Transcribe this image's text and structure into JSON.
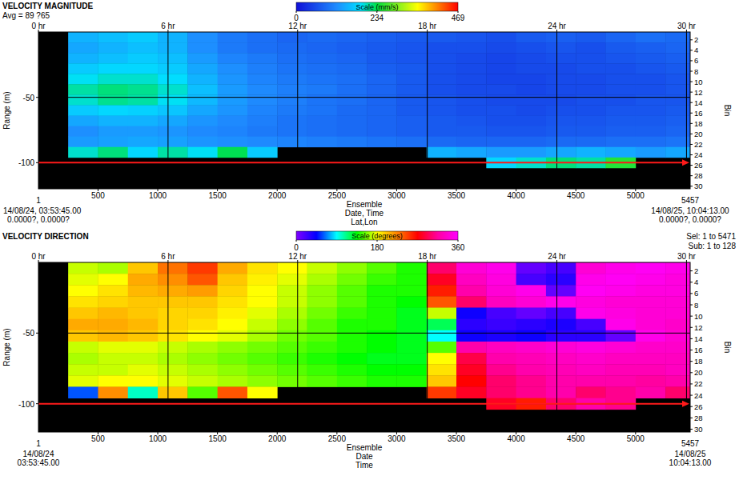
{
  "chart_data": [
    {
      "type": "heatmap",
      "title": "VELOCITY MAGNITUDE",
      "subtitle": "Avg = 89 ?65",
      "x_label": "Ensemble",
      "x_sublabels": [
        "Date, Time",
        "Lat,Lon"
      ],
      "start_labels": [
        "1",
        "14/08/24, 03:53:45.00",
        "0.0000?, 0.0000?"
      ],
      "end_labels": [
        "5457",
        "14/08/25, 10:04:13.00",
        "0.0000?, 0.0000?"
      ],
      "y_label": "Range (m)",
      "y2_label": "Bin",
      "xlim": [
        1,
        5457
      ],
      "xticks": [
        500,
        1000,
        1500,
        2000,
        2500,
        3000,
        3500,
        4000,
        4500,
        5000
      ],
      "x2lim": [
        0,
        30.17
      ],
      "x2ticks": [
        {
          "value": 0,
          "label": "0 hr"
        },
        {
          "value": 6,
          "label": "6 hr"
        },
        {
          "value": 12,
          "label": "12 hr"
        },
        {
          "value": 18,
          "label": "18 hr"
        },
        {
          "value": 24,
          "label": "24 hr"
        },
        {
          "value": 30,
          "label": "30 hr"
        }
      ],
      "ylim": [
        -120,
        0
      ],
      "yticks": [
        -50,
        -100
      ],
      "y2lim": [
        30.5,
        0.5
      ],
      "y2ticks": [
        2,
        4,
        6,
        8,
        10,
        12,
        14,
        16,
        18,
        20,
        22,
        24,
        26,
        28,
        30
      ],
      "grid": true,
      "x_edges": [
        1,
        250,
        500,
        750,
        1000,
        1250,
        1500,
        1750,
        2000,
        2250,
        2500,
        2750,
        3000,
        3250,
        3500,
        3750,
        4000,
        4250,
        4500,
        4750,
        5000,
        5250,
        5457
      ],
      "y_edges": [
        0,
        -8,
        -16,
        -24,
        -32,
        -40,
        -48,
        -56,
        -64,
        -72,
        -80,
        -88,
        -96,
        -104,
        -112,
        -120
      ],
      "values": [
        [
          null,
          150,
          160,
          170,
          150,
          120,
          100,
          90,
          80,
          85,
          80,
          75,
          70,
          70,
          65,
          60,
          70,
          75,
          70,
          80,
          90,
          85
        ],
        [
          null,
          140,
          150,
          160,
          150,
          120,
          100,
          90,
          85,
          80,
          75,
          70,
          65,
          60,
          60,
          55,
          60,
          65,
          60,
          70,
          75,
          80
        ],
        [
          null,
          150,
          160,
          170,
          160,
          130,
          110,
          100,
          90,
          85,
          80,
          70,
          65,
          60,
          55,
          50,
          55,
          60,
          60,
          65,
          70,
          75
        ],
        [
          null,
          170,
          180,
          180,
          170,
          140,
          120,
          105,
          95,
          90,
          85,
          75,
          70,
          60,
          55,
          50,
          55,
          55,
          60,
          60,
          65,
          70
        ],
        [
          null,
          190,
          200,
          200,
          185,
          150,
          125,
          110,
          100,
          95,
          90,
          80,
          70,
          60,
          55,
          50,
          50,
          55,
          55,
          60,
          60,
          65
        ],
        [
          null,
          210,
          220,
          215,
          200,
          160,
          130,
          115,
          105,
          100,
          90,
          80,
          70,
          60,
          55,
          55,
          50,
          55,
          55,
          60,
          60,
          65
        ],
        [
          null,
          200,
          215,
          210,
          190,
          155,
          130,
          115,
          105,
          95,
          90,
          80,
          70,
          65,
          60,
          55,
          55,
          55,
          60,
          60,
          65,
          65
        ],
        [
          null,
          170,
          180,
          175,
          165,
          140,
          125,
          110,
          100,
          95,
          85,
          80,
          70,
          65,
          60,
          60,
          55,
          60,
          60,
          65,
          65,
          70
        ],
        [
          null,
          140,
          150,
          150,
          140,
          125,
          115,
          105,
          95,
          90,
          85,
          80,
          75,
          70,
          65,
          60,
          60,
          65,
          65,
          70,
          70,
          75
        ],
        [
          null,
          120,
          130,
          130,
          125,
          115,
          110,
          100,
          95,
          90,
          85,
          80,
          75,
          70,
          70,
          65,
          65,
          70,
          70,
          75,
          75,
          80
        ],
        [
          null,
          130,
          135,
          140,
          135,
          125,
          120,
          115,
          110,
          105,
          100,
          95,
          90,
          85,
          80,
          80,
          80,
          85,
          85,
          90,
          90,
          95
        ],
        [
          null,
          200,
          220,
          180,
          210,
          190,
          230,
          170,
          null,
          null,
          null,
          null,
          null,
          150,
          140,
          130,
          130,
          140,
          150,
          140,
          130,
          140
        ],
        [
          null,
          null,
          null,
          null,
          null,
          null,
          null,
          null,
          null,
          null,
          null,
          null,
          null,
          null,
          null,
          180,
          200,
          220,
          210,
          250,
          null,
          null
        ],
        [
          null,
          null,
          null,
          null,
          null,
          null,
          null,
          null,
          null,
          null,
          null,
          null,
          null,
          null,
          null,
          null,
          null,
          null,
          null,
          null,
          null,
          null
        ],
        [
          null,
          null,
          null,
          null,
          null,
          null,
          null,
          null,
          null,
          null,
          null,
          null,
          null,
          null,
          null,
          null,
          null,
          null,
          null,
          null,
          null,
          null
        ]
      ],
      "colorbar": {
        "title": "Scale (mm/s)",
        "range": [
          0,
          469
        ],
        "ticks": [
          0,
          234,
          469
        ]
      },
      "reference_line": {
        "value": -100,
        "color": "#ff1a1a"
      }
    },
    {
      "type": "heatmap",
      "title": "VELOCITY DIRECTION",
      "selection_labels": [
        "Sel: 1 to 5471",
        "Sub: 1 to 128"
      ],
      "x_label": "Ensemble",
      "x_sublabels": [
        "Date",
        "Time"
      ],
      "start_labels": [
        "1",
        "14/08/24",
        "03:53:45.00"
      ],
      "end_labels": [
        "5457",
        "14/08/25",
        "10:04:13.00"
      ],
      "y_label": "Range (m)",
      "y2_label": "Bin",
      "xlim": [
        1,
        5457
      ],
      "xticks": [
        500,
        1000,
        1500,
        2000,
        2500,
        3000,
        3500,
        4000,
        4500,
        5000
      ],
      "x2lim": [
        0,
        30.17
      ],
      "x2ticks": [
        {
          "value": 0,
          "label": "0 hr"
        },
        {
          "value": 6,
          "label": "6 hr"
        },
        {
          "value": 12,
          "label": "12 hr"
        },
        {
          "value": 18,
          "label": "18 hr"
        },
        {
          "value": 24,
          "label": "24 hr"
        },
        {
          "value": 30,
          "label": "30 hr"
        }
      ],
      "ylim": [
        -120,
        0
      ],
      "yticks": [
        -50,
        -100
      ],
      "y2lim": [
        30.5,
        0.5
      ],
      "y2ticks": [
        2,
        4,
        6,
        8,
        10,
        12,
        14,
        16,
        18,
        20,
        22,
        24,
        26,
        28,
        30
      ],
      "grid": true,
      "x_edges": [
        1,
        250,
        500,
        750,
        1000,
        1250,
        1500,
        1750,
        2000,
        2250,
        2500,
        2750,
        3000,
        3250,
        3500,
        3750,
        4000,
        4250,
        4500,
        4750,
        5000,
        5250,
        5457
      ],
      "y_edges": [
        0,
        -8,
        -16,
        -24,
        -32,
        -40,
        -48,
        -56,
        -64,
        -72,
        -80,
        -88,
        -96,
        -104,
        -112,
        -120
      ],
      "values": [
        [
          null,
          170,
          165,
          200,
          230,
          250,
          210,
          190,
          180,
          170,
          160,
          150,
          140,
          300,
          340,
          350,
          10,
          20,
          340,
          350,
          355,
          350
        ],
        [
          null,
          175,
          180,
          210,
          220,
          240,
          200,
          185,
          175,
          165,
          155,
          145,
          140,
          280,
          330,
          345,
          20,
          30,
          350,
          355,
          350,
          345
        ],
        [
          null,
          180,
          190,
          205,
          210,
          215,
          195,
          180,
          170,
          160,
          150,
          140,
          140,
          260,
          320,
          340,
          350,
          10,
          355,
          350,
          345,
          345
        ],
        [
          null,
          190,
          195,
          200,
          200,
          200,
          190,
          180,
          170,
          160,
          150,
          140,
          135,
          240,
          300,
          330,
          340,
          350,
          345,
          340,
          340,
          340
        ],
        [
          null,
          200,
          205,
          200,
          195,
          195,
          185,
          175,
          165,
          155,
          145,
          140,
          130,
          170,
          40,
          20,
          10,
          20,
          350,
          345,
          340,
          340
        ],
        [
          null,
          210,
          210,
          205,
          195,
          190,
          180,
          170,
          160,
          150,
          140,
          140,
          130,
          120,
          30,
          25,
          30,
          35,
          20,
          350,
          340,
          335
        ],
        [
          null,
          200,
          205,
          200,
          190,
          180,
          175,
          165,
          155,
          150,
          140,
          135,
          130,
          90,
          40,
          35,
          40,
          30,
          30,
          10,
          350,
          340
        ],
        [
          null,
          170,
          175,
          175,
          170,
          165,
          160,
          155,
          150,
          145,
          140,
          135,
          130,
          150,
          320,
          330,
          335,
          340,
          345,
          340,
          335,
          335
        ],
        [
          null,
          165,
          170,
          170,
          165,
          160,
          155,
          150,
          145,
          140,
          135,
          130,
          130,
          180,
          290,
          320,
          325,
          330,
          335,
          330,
          330,
          330
        ],
        [
          null,
          170,
          170,
          175,
          170,
          165,
          160,
          155,
          150,
          145,
          140,
          135,
          135,
          190,
          280,
          310,
          320,
          325,
          330,
          325,
          325,
          330
        ],
        [
          null,
          175,
          180,
          180,
          175,
          170,
          165,
          160,
          155,
          150,
          145,
          140,
          140,
          200,
          270,
          300,
          310,
          320,
          320,
          320,
          315,
          320
        ],
        [
          null,
          60,
          220,
          100,
          200,
          150,
          240,
          180,
          null,
          null,
          null,
          null,
          null,
          250,
          280,
          300,
          310,
          320,
          300,
          310,
          320,
          300
        ],
        [
          null,
          null,
          null,
          null,
          null,
          null,
          null,
          null,
          null,
          null,
          null,
          null,
          null,
          null,
          null,
          280,
          260,
          300,
          320,
          310,
          null,
          null
        ],
        [
          null,
          null,
          null,
          null,
          null,
          null,
          null,
          null,
          null,
          null,
          null,
          null,
          null,
          null,
          null,
          null,
          null,
          null,
          null,
          null,
          null,
          null
        ],
        [
          null,
          null,
          null,
          null,
          null,
          null,
          null,
          null,
          null,
          null,
          null,
          null,
          null,
          null,
          null,
          null,
          null,
          null,
          null,
          null,
          null,
          null
        ]
      ],
      "colorbar": {
        "title": "Scale (degrees)",
        "range": [
          0,
          360
        ],
        "ticks": [
          0,
          180,
          360
        ]
      },
      "reference_line": {
        "value": -100,
        "color": "#ff1a1a"
      }
    }
  ]
}
